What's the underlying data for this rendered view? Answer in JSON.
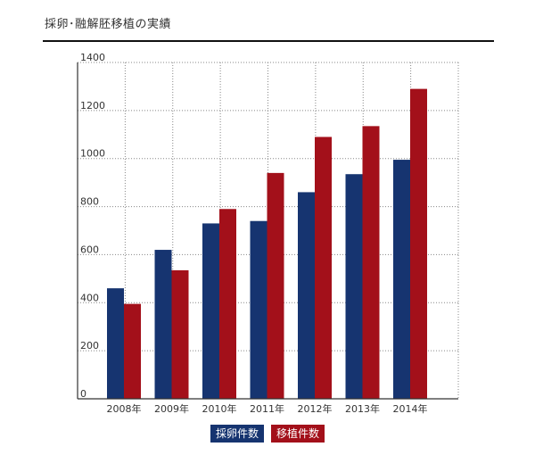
{
  "page": {
    "title": "採卵･融解胚移植の実績"
  },
  "colors": {
    "series1": "#163470",
    "series2": "#a3101a",
    "grid": "#888888",
    "axis": "#333333"
  },
  "chart_data": {
    "type": "bar",
    "categories": [
      "2008年",
      "2009年",
      "2010年",
      "2011年",
      "2012年",
      "2013年",
      "2014年"
    ],
    "series": [
      {
        "name": "採卵件数",
        "values": [
          460,
          620,
          730,
          740,
          860,
          935,
          995
        ]
      },
      {
        "name": "移植件数",
        "values": [
          395,
          535,
          790,
          940,
          1090,
          1135,
          1290
        ]
      }
    ],
    "yticks": [
      "0",
      "200",
      "400",
      "600",
      "800",
      "1000",
      "1200",
      "1400"
    ],
    "ylim": [
      0,
      1400
    ],
    "grid": true,
    "legend_position": "bottom-center"
  }
}
